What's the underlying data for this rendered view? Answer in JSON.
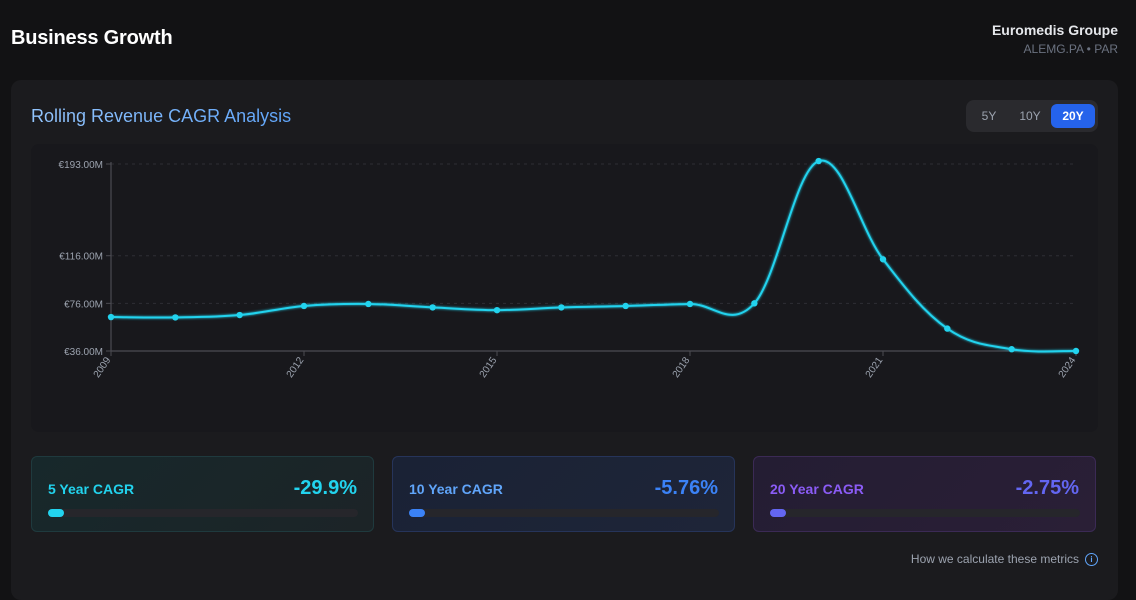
{
  "header": {
    "title": "Business Growth",
    "company": "Euromedis Groupe",
    "ticker": "ALEMG.PA • PAR"
  },
  "card": {
    "title": "Rolling Revenue CAGR Analysis"
  },
  "ranges": [
    {
      "label": "5Y",
      "active": false
    },
    {
      "label": "10Y",
      "active": false
    },
    {
      "label": "20Y",
      "active": true
    }
  ],
  "chart_data": {
    "type": "line",
    "title": "Rolling Revenue CAGR Analysis",
    "x": [
      2009,
      2010,
      2011,
      2012,
      2013,
      2014,
      2015,
      2016,
      2017,
      2018,
      2019,
      2020,
      2021,
      2022,
      2023,
      2024
    ],
    "series": [
      {
        "name": "Revenue",
        "values": [
          64.5,
          64.2,
          66.2,
          73.8,
          75.5,
          72.6,
          70.3,
          72.6,
          73.8,
          75.5,
          76.0,
          195.5,
          113.0,
          54.8,
          37.5,
          36.0
        ]
      }
    ],
    "yticks": [
      "€193.00M",
      "€116.00M",
      "€76.00M",
      "€36.00M"
    ],
    "ytick_values": [
      193,
      116,
      76,
      36
    ],
    "xticks": [
      "2009",
      "2012",
      "2015",
      "2018",
      "2021",
      "2024"
    ],
    "xtick_values": [
      2009,
      2012,
      2015,
      2018,
      2021,
      2024
    ],
    "ylim": [
      36,
      193
    ],
    "xlim": [
      2009,
      2024
    ],
    "color": "#22d3ee"
  },
  "metrics": [
    {
      "label": "5 Year CAGR",
      "value": "-29.9%",
      "fill": 0.05
    },
    {
      "label": "10 Year CAGR",
      "value": "-5.76%",
      "fill": 0.05
    },
    {
      "label": "20 Year CAGR",
      "value": "-2.75%",
      "fill": 0.05
    }
  ],
  "footer": {
    "link": "How we calculate these metrics",
    "info_symbol": "i"
  }
}
